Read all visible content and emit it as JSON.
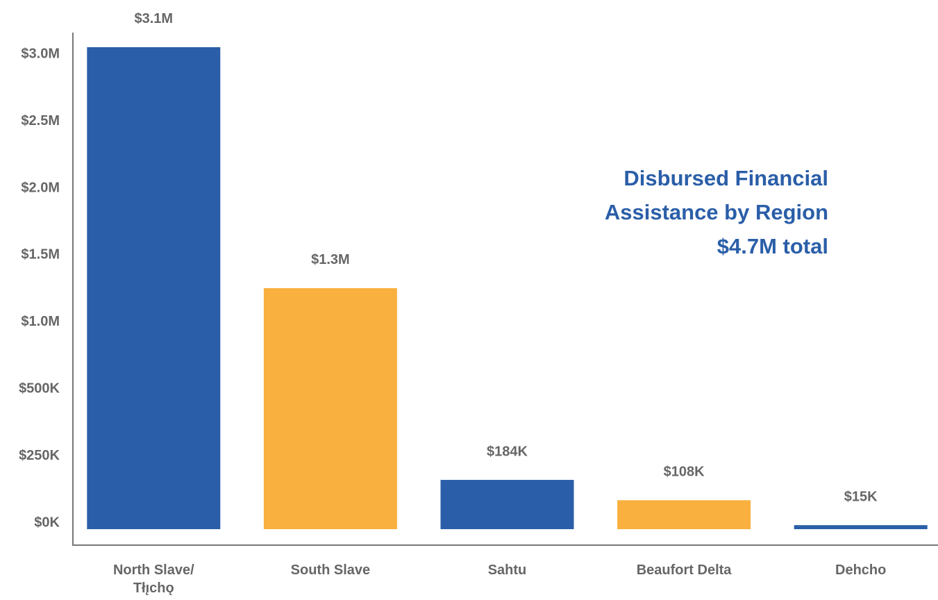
{
  "chart_data": {
    "type": "bar",
    "title": "Disbursed Financial Assistance by Region",
    "subtitle": "$4.7M total",
    "categories": [
      "North Slave/ Tłı̨chǫ",
      "South Slave",
      "Sahtu",
      "Beaufort Delta",
      "Dehcho"
    ],
    "values": [
      3100000,
      1300000,
      184000,
      108000,
      15000
    ],
    "value_labels": [
      "$3.1M",
      "$1.3M",
      "$184K",
      "$108K",
      "$15K"
    ],
    "colors": [
      "#2a5ea8",
      "#f9b03e",
      "#2a5ea8",
      "#f9b03e",
      "#2a5ea8"
    ],
    "ylim": [
      0,
      3100000
    ],
    "yticks": [
      {
        "value": 0,
        "label": "$0K"
      },
      {
        "value": 250000,
        "label": "$250K"
      },
      {
        "value": 500000,
        "label": "$500K"
      },
      {
        "value": 1000000,
        "label": "$1.0M"
      },
      {
        "value": 1500000,
        "label": "$1.5M"
      },
      {
        "value": 2000000,
        "label": "$2.0M"
      },
      {
        "value": 2500000,
        "label": "$2.5M"
      },
      {
        "value": 3000000,
        "label": "$3.0M"
      }
    ],
    "grid": false
  }
}
